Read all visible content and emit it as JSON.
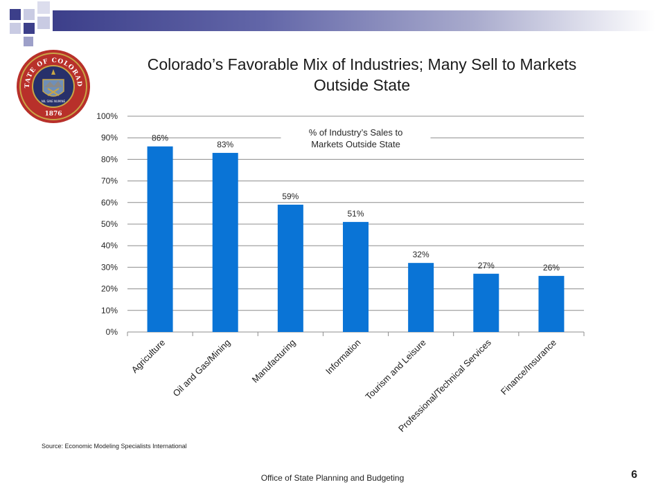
{
  "slide": {
    "title_line1": "Colorado’s Favorable Mix of Industries; Many Sell to Markets",
    "title_line2": "Outside State",
    "source": "Source: Economic Modeling Specialists International",
    "footer": "Office of State Planning and Budgeting",
    "page_number": "6"
  },
  "seal": {
    "text_top": "STATE OF COLORADO",
    "text_bottom": "1876",
    "motto": "NIL SINE NUMINE"
  },
  "colors": {
    "bar": "#0a74d6",
    "deco_dark": "#3c3f8a",
    "deco_light": "#a9abcd",
    "seal_red": "#b8302a",
    "seal_navy": "#27306a",
    "seal_gold": "#c9a646"
  },
  "chart_data": {
    "type": "bar",
    "categories": [
      "Agriculture",
      "Oil and Gas/Mining",
      "Manufacturing",
      "Information",
      "Tourism and Leisure",
      "Professional/Technical Services",
      "Finance/Insurance"
    ],
    "values": [
      86,
      83,
      59,
      51,
      32,
      27,
      26
    ],
    "data_labels": [
      "86%",
      "83%",
      "59%",
      "51%",
      "32%",
      "27%",
      "26%"
    ],
    "ylim": [
      0,
      100
    ],
    "yticks": [
      0,
      10,
      20,
      30,
      40,
      50,
      60,
      70,
      80,
      90,
      100
    ],
    "ytick_labels": [
      "0%",
      "10%",
      "20%",
      "30%",
      "40%",
      "50%",
      "60%",
      "70%",
      "80%",
      "90%",
      "100%"
    ],
    "annotation_line1": "% of Industry’s Sales to",
    "annotation_line2": "Markets Outside State",
    "grid": true
  }
}
